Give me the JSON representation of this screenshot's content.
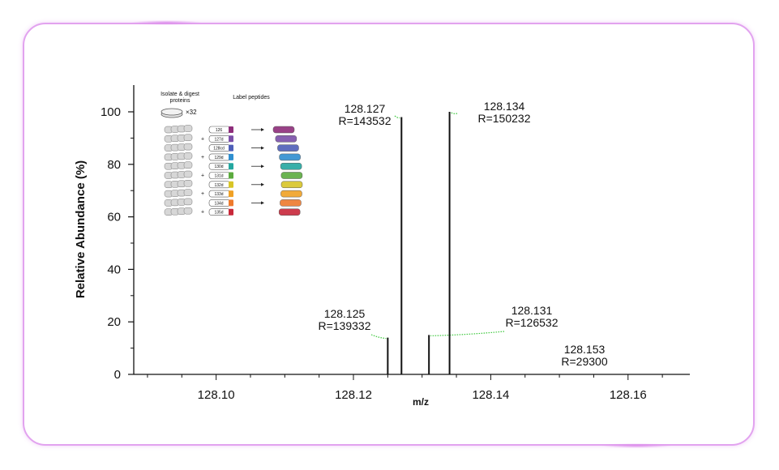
{
  "chart_data": {
    "type": "bar",
    "xlabel": "m/z",
    "ylabel": "Relative Abundance (%)",
    "xlim": [
      128.088,
      128.169
    ],
    "ylim": [
      0,
      100
    ],
    "x_ticks": [
      "128.10",
      "128.12",
      "128.14",
      "128.16"
    ],
    "x_tick_values": [
      128.1,
      128.12,
      128.14,
      128.16
    ],
    "y_ticks": [
      "0",
      "20",
      "40",
      "60",
      "80",
      "100"
    ],
    "y_tick_values": [
      0,
      20,
      40,
      60,
      80,
      100
    ],
    "peaks": [
      {
        "mz": 128.125,
        "intensity": 14,
        "label_mz": "128.125",
        "label_r": "R=139332"
      },
      {
        "mz": 128.127,
        "intensity": 98,
        "label_mz": "128.127",
        "label_r": "R=143532"
      },
      {
        "mz": 128.131,
        "intensity": 15,
        "label_mz": "128.131",
        "label_r": "R=126532"
      },
      {
        "mz": 128.134,
        "intensity": 100,
        "label_mz": "128.134",
        "label_r": "R=150232"
      },
      {
        "mz": 128.153,
        "intensity": 0,
        "label_mz": "128.153",
        "label_r": "R=29300"
      }
    ],
    "grid": false,
    "colors": {
      "peak": "#111111",
      "leader": "#3cc83c",
      "frame": "#e2a3ef"
    }
  },
  "inset": {
    "step1": "Isolate & digest proteins",
    "step1_line1": "Isolate & digest",
    "step1_line2": "proteins",
    "multiplier": "×32",
    "step2": "Label peptides",
    "tags": [
      "126",
      "127d",
      "128cd",
      "129d",
      "130d",
      "131d",
      "132d",
      "133d",
      "134d",
      "135d"
    ],
    "tag_colors": [
      "#8e2d7b",
      "#7b4fa8",
      "#4e5fb8",
      "#2f8fd0",
      "#23a7a0",
      "#5cab3f",
      "#d8c527",
      "#f0a125",
      "#ee7a2d",
      "#c8283a"
    ]
  }
}
